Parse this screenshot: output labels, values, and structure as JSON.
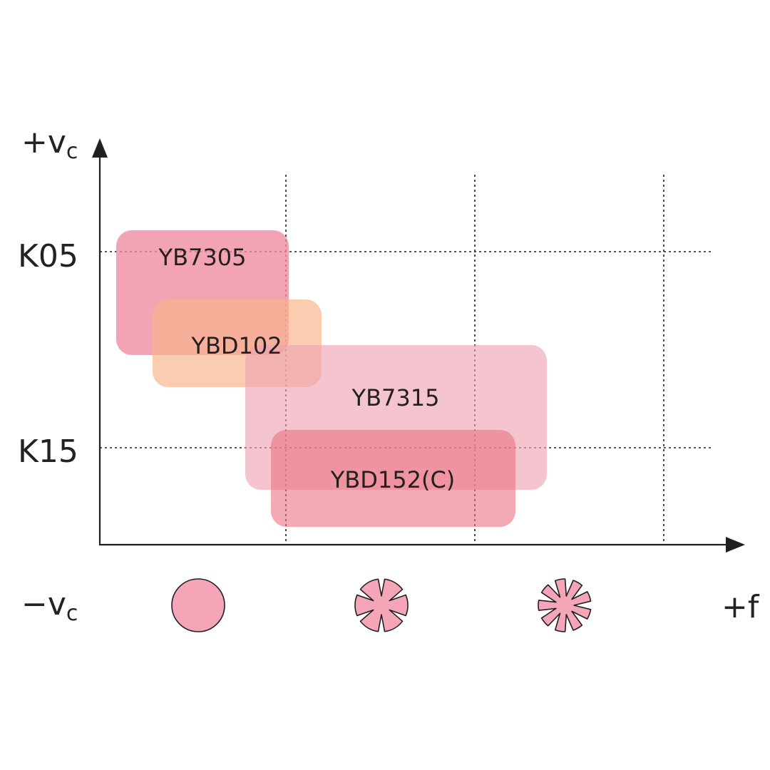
{
  "axes": {
    "y_positive_label": {
      "main": "+v",
      "sub": "c"
    },
    "y_negative_label": {
      "main": "−v",
      "sub": "c"
    },
    "x_positive_label": "+f"
  },
  "y_ticks": [
    "K05",
    "K15"
  ],
  "regions": [
    {
      "name": "YB7305",
      "color": "#ef8a9f",
      "opacity": 0.78
    },
    {
      "name": "YBD102",
      "color": "#f7b48b",
      "opacity": 0.68
    },
    {
      "name": "YB7315",
      "color": "#eda2b0",
      "opacity": 0.62
    },
    {
      "name": "YBD152(C)",
      "color": "#eb7184",
      "opacity": 0.6
    }
  ],
  "chip_icons": [
    {
      "name": "round-chip-icon",
      "fill": "#f4a6b8"
    },
    {
      "name": "grooved-chip-icon",
      "fill": "#f4a6b8"
    },
    {
      "name": "star-chip-icon",
      "fill": "#f4a6b8"
    }
  ],
  "colors": {
    "axis": "#231f20",
    "chip_outline": "#231f20"
  }
}
